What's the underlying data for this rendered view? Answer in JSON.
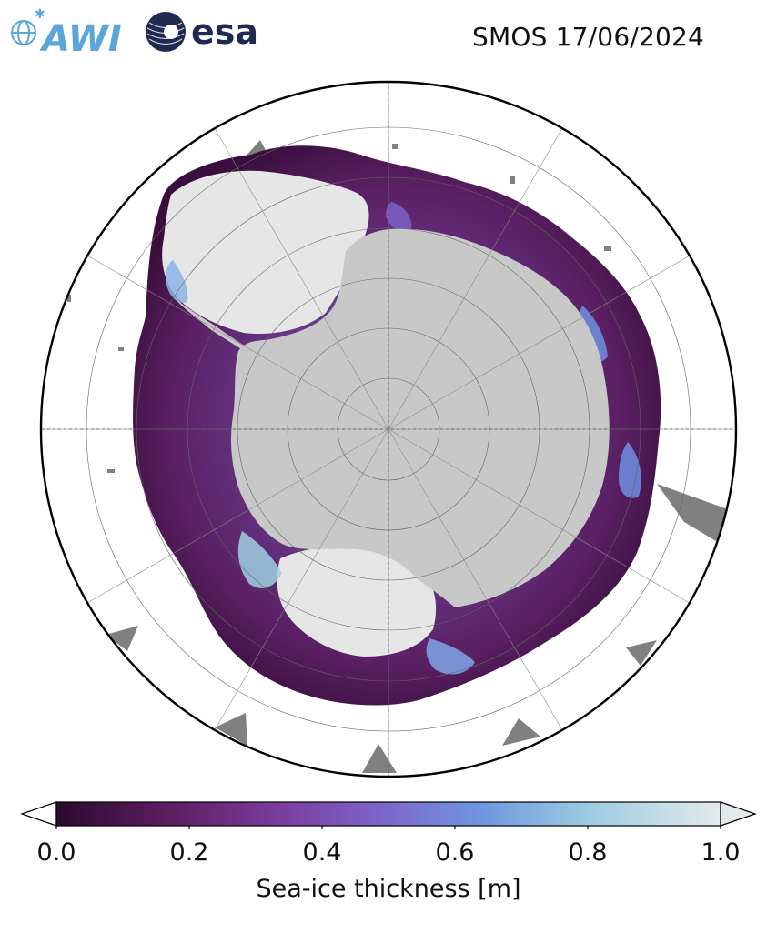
{
  "header": {
    "title": "SMOS 17/06/2024",
    "logos": [
      {
        "name": "awi-logo",
        "text": "AWI",
        "color": "#5aa6d9"
      },
      {
        "name": "esa-logo",
        "text": "esa",
        "color": "#1e2a4f"
      }
    ]
  },
  "map": {
    "projection": "south-polar-stereographic",
    "land_color": "#c8c8c8",
    "thin_ice_color": "#3a0f3d",
    "thick_ice_color": "#e8e8e8",
    "ocean_color": "#ffffff",
    "mask_color": "#808080",
    "graticule": "dotted"
  },
  "colorbar": {
    "label": "Sea-ice thickness [m]",
    "ticks": [
      "0.0",
      "0.2",
      "0.4",
      "0.6",
      "0.8",
      "1.0"
    ],
    "range": [
      0.0,
      1.0
    ],
    "colormap": [
      "#2a0a2e",
      "#5a1d5e",
      "#7a3c9c",
      "#7d62c8",
      "#6f96e0",
      "#9ccbe0",
      "#e3eaec"
    ],
    "extend": "both"
  }
}
